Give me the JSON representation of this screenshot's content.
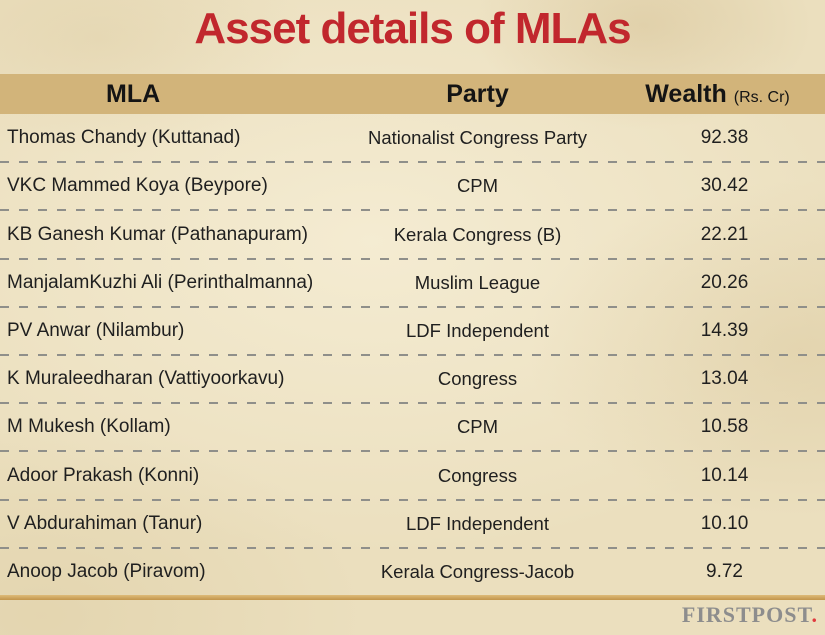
{
  "title": "Asset details of MLAs",
  "header": {
    "mla": "MLA",
    "party": "Party",
    "wealth": "Wealth",
    "wealth_unit": "(Rs. Cr)"
  },
  "table": {
    "rows": [
      {
        "mla": "Thomas Chandy (Kuttanad)",
        "party": "Nationalist Congress Party",
        "wealth": "92.38"
      },
      {
        "mla": "VKC Mammed Koya (Beypore)",
        "party": "CPM",
        "wealth": "30.42"
      },
      {
        "mla": "KB Ganesh Kumar (Pathanapuram)",
        "party": "Kerala Congress (B)",
        "wealth": "22.21"
      },
      {
        "mla": "ManjalamKuzhi Ali (Perinthalmanna)",
        "party": "Muslim League",
        "wealth": "20.26"
      },
      {
        "mla": "PV Anwar (Nilambur)",
        "party": "LDF Independent",
        "wealth": "14.39"
      },
      {
        "mla": "K Muraleedharan (Vattiyoorkavu)",
        "party": "Congress",
        "wealth": "13.04"
      },
      {
        "mla": "M Mukesh (Kollam)",
        "party": "CPM",
        "wealth": "10.58"
      },
      {
        "mla": "Adoor Prakash (Konni)",
        "party": "Congress",
        "wealth": "10.14"
      },
      {
        "mla": "V Abdurahiman (Tanur)",
        "party": "LDF Independent",
        "wealth": "10.10"
      },
      {
        "mla": "Anoop Jacob (Piravom)",
        "party": "Kerala Congress-Jacob",
        "wealth": "9.72"
      }
    ]
  },
  "footer": {
    "logo_text": "FIRSTPOST",
    "logo_dot": "."
  },
  "colors": {
    "title_red": "#c1272d",
    "header_band_tan": "#d2b47a",
    "parchment_background": "#ebdfbe",
    "gold_line": "#c2954c",
    "dashed_separator": "#8f8f8a",
    "body_text": "#1f1f1f",
    "logo_gray": "#8d8d8d",
    "logo_dot_red": "#e03a3e"
  },
  "chart_data": {
    "type": "table",
    "title": "Asset details of MLAs",
    "columns": [
      "MLA",
      "Party",
      "Wealth (Rs. Cr)"
    ],
    "rows": [
      [
        "Thomas Chandy (Kuttanad)",
        "Nationalist Congress Party",
        "92.38"
      ],
      [
        "VKC Mammed Koya (Beypore)",
        "CPM",
        "30.42"
      ],
      [
        "KB Ganesh Kumar (Pathanapuram)",
        "Kerala Congress (B)",
        "22.21"
      ],
      [
        "ManjalamKuzhi Ali (Perinthalmanna)",
        "Muslim League",
        "20.26"
      ],
      [
        "PV Anwar (Nilambur)",
        "LDF Independent",
        "14.39"
      ],
      [
        "K Muraleedharan (Vattiyoorkavu)",
        "Congress",
        "13.04"
      ],
      [
        "M Mukesh (Kollam)",
        "CPM",
        "10.58"
      ],
      [
        "Adoor Prakash (Konni)",
        "Congress",
        "10.14"
      ],
      [
        "V Abdurahiman (Tanur)",
        "LDF Independent",
        "10.10"
      ],
      [
        "Anoop Jacob (Piravom)",
        "Kerala Congress-Jacob",
        "9.72"
      ]
    ],
    "source_branding": "FIRSTPOST."
  }
}
